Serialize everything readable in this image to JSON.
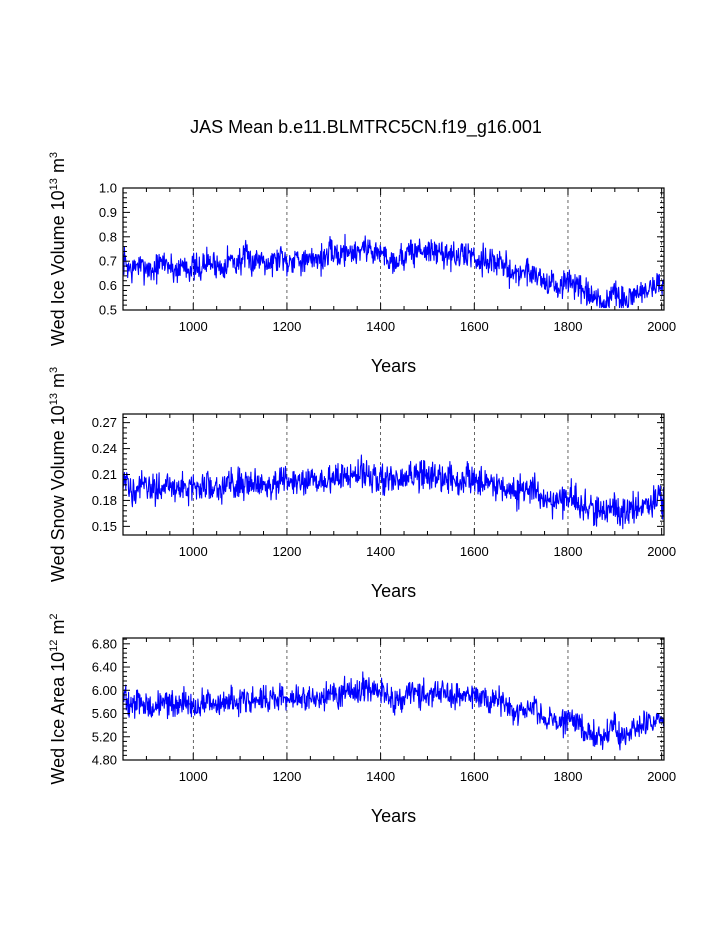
{
  "title": "JAS Mean b.e11.BLMTRC5CN.f19_g16.001",
  "colors": {
    "line": "#0000ff",
    "axis": "#000000",
    "grid": "#000000"
  },
  "chart_data": [
    {
      "type": "line",
      "ylabel_main": "Wed Ice Volume 10",
      "ylabel_exp1": "13",
      "ylabel_unit": " m",
      "ylabel_exp2": "3",
      "xlabel": "Years",
      "xlim": [
        850,
        2005
      ],
      "ylim": [
        0.5,
        1.0
      ],
      "xticks": [
        1000,
        1200,
        1400,
        1600,
        1800,
        2000
      ],
      "xtick_labels": [
        "1000",
        "1200",
        "1400",
        "1600",
        "1800",
        "2000"
      ],
      "yticks": [
        0.5,
        0.6,
        0.7,
        0.8,
        0.9,
        1.0
      ],
      "ytick_labels": [
        "0.5",
        "0.6",
        "0.7",
        "0.8",
        "0.9",
        "1.0"
      ],
      "gridlines_x": [
        1000,
        1200,
        1400,
        1600,
        1800,
        2000
      ],
      "series": [
        {
          "name": "Wed Ice Volume",
          "x_start": 850,
          "x_step": 10,
          "values": [
            0.71,
            0.68,
            0.66,
            0.69,
            0.67,
            0.68,
            0.66,
            0.67,
            0.69,
            0.7,
            0.68,
            0.66,
            0.67,
            0.69,
            0.67,
            0.68,
            0.66,
            0.68,
            0.7,
            0.69,
            0.69,
            0.67,
            0.7,
            0.71,
            0.69,
            0.7,
            0.72,
            0.7,
            0.7,
            0.71,
            0.72,
            0.69,
            0.7,
            0.71,
            0.73,
            0.69,
            0.71,
            0.72,
            0.71,
            0.69,
            0.7,
            0.72,
            0.71,
            0.71,
            0.73,
            0.74,
            0.72,
            0.74,
            0.75,
            0.73,
            0.74,
            0.76,
            0.75,
            0.75,
            0.73,
            0.74,
            0.72,
            0.71,
            0.7,
            0.71,
            0.72,
            0.74,
            0.73,
            0.75,
            0.74,
            0.75,
            0.73,
            0.74,
            0.73,
            0.74,
            0.72,
            0.71,
            0.72,
            0.73,
            0.73,
            0.72,
            0.7,
            0.72,
            0.7,
            0.7,
            0.69,
            0.68,
            0.67,
            0.66,
            0.64,
            0.66,
            0.66,
            0.65,
            0.66,
            0.63,
            0.62,
            0.61,
            0.6,
            0.59,
            0.6,
            0.62,
            0.62,
            0.59,
            0.57,
            0.56,
            0.55,
            0.54,
            0.53,
            0.52,
            0.56,
            0.58,
            0.53,
            0.53,
            0.54,
            0.57,
            0.58,
            0.56,
            0.59,
            0.59,
            0.61,
            0.6
          ],
          "annual_noise": 0.05
        }
      ]
    },
    {
      "type": "line",
      "ylabel_main": "Wed Snow Volume 10",
      "ylabel_exp1": "13",
      "ylabel_unit": " m",
      "ylabel_exp2": "3",
      "xlabel": "Years",
      "xlim": [
        850,
        2005
      ],
      "ylim": [
        0.14,
        0.28
      ],
      "xticks": [
        1000,
        1200,
        1400,
        1600,
        1800,
        2000
      ],
      "xtick_labels": [
        "1000",
        "1200",
        "1400",
        "1600",
        "1800",
        "2000"
      ],
      "yticks": [
        0.15,
        0.18,
        0.21,
        0.24,
        0.27
      ],
      "ytick_labels": [
        "0.15",
        "0.18",
        "0.21",
        "0.24",
        "0.27"
      ],
      "gridlines_x": [
        1000,
        1200,
        1400,
        1600,
        1800,
        2000
      ],
      "series": [
        {
          "name": "Wed Snow Volume",
          "x_start": 850,
          "x_step": 10,
          "values": [
            0.2,
            0.196,
            0.193,
            0.197,
            0.194,
            0.195,
            0.192,
            0.194,
            0.197,
            0.199,
            0.196,
            0.192,
            0.193,
            0.197,
            0.194,
            0.195,
            0.192,
            0.195,
            0.199,
            0.198,
            0.198,
            0.194,
            0.199,
            0.2,
            0.198,
            0.2,
            0.203,
            0.2,
            0.2,
            0.201,
            0.203,
            0.197,
            0.2,
            0.201,
            0.205,
            0.197,
            0.201,
            0.203,
            0.201,
            0.198,
            0.2,
            0.204,
            0.202,
            0.201,
            0.205,
            0.208,
            0.204,
            0.209,
            0.21,
            0.206,
            0.208,
            0.212,
            0.21,
            0.21,
            0.206,
            0.209,
            0.204,
            0.202,
            0.2,
            0.202,
            0.204,
            0.208,
            0.206,
            0.21,
            0.208,
            0.21,
            0.206,
            0.208,
            0.207,
            0.208,
            0.204,
            0.202,
            0.204,
            0.206,
            0.206,
            0.204,
            0.2,
            0.204,
            0.2,
            0.2,
            0.198,
            0.196,
            0.194,
            0.192,
            0.188,
            0.192,
            0.192,
            0.19,
            0.192,
            0.186,
            0.184,
            0.182,
            0.18,
            0.178,
            0.18,
            0.184,
            0.184,
            0.178,
            0.174,
            0.172,
            0.17,
            0.168,
            0.166,
            0.164,
            0.172,
            0.176,
            0.166,
            0.166,
            0.168,
            0.174,
            0.176,
            0.172,
            0.178,
            0.178,
            0.182,
            0.18
          ],
          "annual_noise": 0.015
        }
      ]
    },
    {
      "type": "line",
      "ylabel_main": "Wed Ice Area 10",
      "ylabel_exp1": "12",
      "ylabel_unit": " m",
      "ylabel_exp2": "2",
      "xlabel": "Years",
      "xlim": [
        850,
        2005
      ],
      "ylim": [
        4.8,
        6.9
      ],
      "xticks": [
        1000,
        1200,
        1400,
        1600,
        1800,
        2000
      ],
      "xtick_labels": [
        "1000",
        "1200",
        "1400",
        "1600",
        "1800",
        "2000"
      ],
      "yticks": [
        4.8,
        5.2,
        5.6,
        6.0,
        6.4,
        6.8
      ],
      "ytick_labels": [
        "4.80",
        "5.20",
        "5.60",
        "6.00",
        "6.40",
        "6.80"
      ],
      "gridlines_x": [
        1000,
        1200,
        1400,
        1600,
        1800,
        2000
      ],
      "series": [
        {
          "name": "Wed Ice Area",
          "x_start": 850,
          "x_step": 10,
          "values": [
            5.85,
            5.78,
            5.72,
            5.8,
            5.74,
            5.76,
            5.7,
            5.74,
            5.8,
            5.83,
            5.78,
            5.7,
            5.72,
            5.8,
            5.74,
            5.76,
            5.7,
            5.76,
            5.83,
            5.81,
            5.81,
            5.74,
            5.83,
            5.85,
            5.81,
            5.83,
            5.88,
            5.83,
            5.83,
            5.85,
            5.88,
            5.78,
            5.83,
            5.85,
            5.92,
            5.78,
            5.85,
            5.88,
            5.85,
            5.81,
            5.83,
            5.9,
            5.87,
            5.85,
            5.92,
            5.97,
            5.9,
            5.99,
            6.0,
            5.94,
            5.97,
            6.04,
            6.0,
            6.0,
            5.94,
            5.99,
            5.9,
            5.87,
            5.83,
            5.87,
            5.9,
            5.97,
            5.94,
            6.0,
            5.97,
            6.0,
            5.94,
            5.97,
            5.96,
            5.97,
            5.9,
            5.87,
            5.9,
            5.94,
            5.94,
            5.9,
            5.83,
            5.9,
            5.83,
            5.83,
            5.81,
            5.78,
            5.74,
            5.7,
            5.64,
            5.7,
            5.7,
            5.66,
            5.7,
            5.6,
            5.56,
            5.52,
            5.48,
            5.44,
            5.48,
            5.56,
            5.56,
            5.44,
            5.36,
            5.32,
            5.28,
            5.24,
            5.2,
            5.16,
            5.32,
            5.4,
            5.2,
            5.2,
            5.24,
            5.36,
            5.4,
            5.32,
            5.44,
            5.44,
            5.52,
            5.48
          ],
          "annual_noise": 0.2
        }
      ]
    }
  ]
}
